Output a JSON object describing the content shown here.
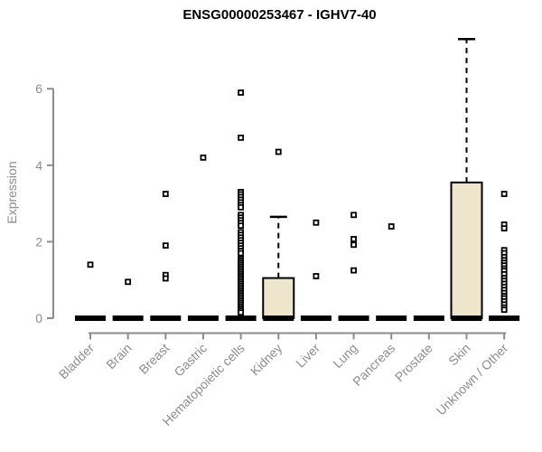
{
  "chart_data": {
    "type": "boxplot",
    "title": "ENSG00000253467 - IGHV7-40",
    "ylabel": "Expression",
    "xlabel": "",
    "yticks": [
      0,
      2,
      4,
      6
    ],
    "ylim": [
      0,
      7.5
    ],
    "grid": false,
    "legend": false,
    "categories": [
      "Bladder",
      "Brain",
      "Breast",
      "Gastric",
      "Hematopoietic cells",
      "Kidney",
      "Liver",
      "Lung",
      "Pancreas",
      "Prostate",
      "Skin",
      "Unknown / Other"
    ],
    "series": [
      {
        "name": "Bladder",
        "median": 0,
        "q1": 0,
        "q3": 0,
        "whisker_low": 0,
        "whisker_high": 0,
        "outliers": [
          1.4
        ]
      },
      {
        "name": "Brain",
        "median": 0,
        "q1": 0,
        "q3": 0,
        "whisker_low": 0,
        "whisker_high": 0,
        "outliers": [
          0.95
        ]
      },
      {
        "name": "Breast",
        "median": 0,
        "q1": 0,
        "q3": 0,
        "whisker_low": 0,
        "whisker_high": 0,
        "outliers": [
          3.25,
          1.9,
          1.13,
          1.04
        ]
      },
      {
        "name": "Gastric",
        "median": 0,
        "q1": 0,
        "q3": 0,
        "whisker_low": 0,
        "whisker_high": 0,
        "outliers": [
          4.2
        ]
      },
      {
        "name": "Hematopoietic cells",
        "median": 0,
        "q1": 0,
        "q3": 0,
        "whisker_low": 0,
        "whisker_high": 0,
        "outliers": [
          5.9,
          4.72,
          3.3,
          3.24,
          3.17,
          3.1,
          3.03,
          2.96,
          2.9,
          2.7,
          2.63,
          2.56,
          2.49,
          2.42,
          2.25,
          2.18,
          2.11,
          2.04,
          1.97,
          1.9,
          1.83,
          1.76,
          1.7,
          1.55,
          1.5,
          1.45,
          1.4,
          1.35,
          1.3,
          1.25,
          1.2,
          1.15,
          1.1,
          1.05,
          1.0,
          0.95,
          0.9,
          0.85,
          0.8,
          0.75,
          0.7,
          0.65,
          0.6,
          0.55,
          0.5,
          0.45,
          0.4,
          0.35,
          0.3,
          0.25,
          0.2,
          0.15
        ]
      },
      {
        "name": "Kidney",
        "median": 0,
        "q1": 0,
        "q3": 1.05,
        "whisker_low": 0,
        "whisker_high": 2.65,
        "outliers": [
          4.35
        ]
      },
      {
        "name": "Liver",
        "median": 0,
        "q1": 0,
        "q3": 0,
        "whisker_low": 0,
        "whisker_high": 0,
        "outliers": [
          2.5,
          1.1
        ]
      },
      {
        "name": "Lung",
        "median": 0,
        "q1": 0,
        "q3": 0,
        "whisker_low": 0,
        "whisker_high": 0,
        "outliers": [
          2.7,
          2.07,
          1.92,
          1.25
        ]
      },
      {
        "name": "Pancreas",
        "median": 0,
        "q1": 0,
        "q3": 0,
        "whisker_low": 0,
        "whisker_high": 0,
        "outliers": [
          2.4
        ]
      },
      {
        "name": "Prostate",
        "median": 0,
        "q1": 0,
        "q3": 0,
        "whisker_low": 0,
        "whisker_high": 0,
        "outliers": []
      },
      {
        "name": "Skin",
        "median": 0,
        "q1": 0,
        "q3": 3.55,
        "whisker_low": 0,
        "whisker_high": 7.3,
        "outliers": []
      },
      {
        "name": "Unknown / Other",
        "median": 0,
        "q1": 0,
        "q3": 0,
        "whisker_low": 0,
        "whisker_high": 0,
        "outliers": [
          3.25,
          2.45,
          2.35,
          1.78,
          1.7,
          1.6,
          1.52,
          1.45,
          1.38,
          1.3,
          1.24,
          1.15,
          1.05,
          0.98,
          0.9,
          0.82,
          0.74,
          0.66,
          0.58,
          0.52,
          0.44,
          0.36,
          0.28,
          0.22
        ]
      }
    ],
    "colors": {
      "box_fill": "#EDE6CD",
      "box_border": "#000000",
      "median": "#000000",
      "point": "#000000",
      "axis": "#8C8C8C",
      "title": "#000000",
      "background": "#FFFFFF"
    }
  }
}
